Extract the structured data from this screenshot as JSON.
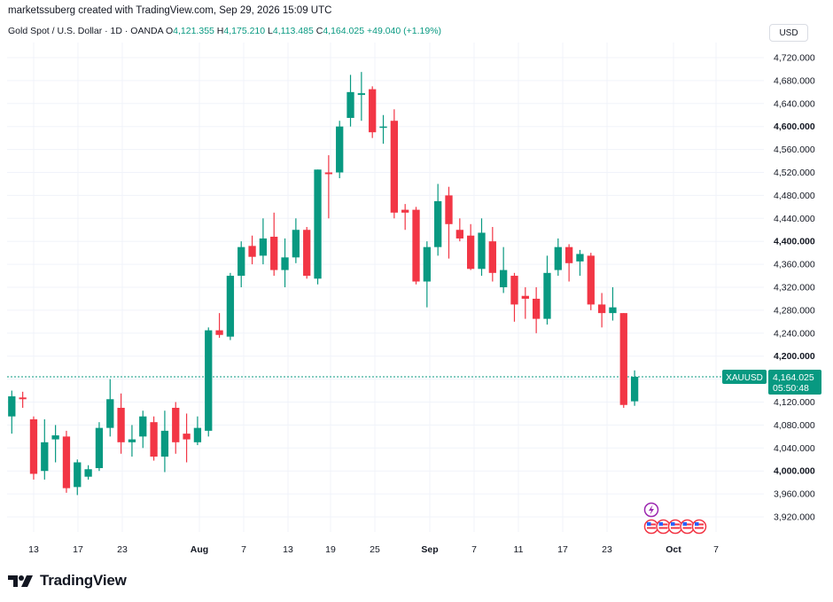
{
  "header": {
    "credit": "marketssuberg created with TradingView.com, Sep 29, 2026 15:09 UTC"
  },
  "legend": {
    "instrument": "Gold Spot / U.S. Dollar · 1D · OANDA",
    "open_label": "O",
    "open_value": "4,121.355",
    "high_label": "H",
    "high_value": "4,175.210",
    "low_label": "L",
    "low_value": "4,113.485",
    "close_label": "C",
    "close_value": "4,164.025",
    "change": "+49.040 (+1.19%)"
  },
  "currency_button": "USD",
  "price_tag": {
    "symbol": "XAUUSD",
    "price": "4,164.025",
    "countdown": "05:50:48"
  },
  "brand": {
    "name": "TradingView"
  },
  "colors": {
    "up": "#089981",
    "down": "#f23645",
    "grid": "#f0f3fa",
    "axis_text": "#131722"
  },
  "chart_data": {
    "type": "candlestick",
    "ylim": [
      3890,
      4760
    ],
    "y_ticks": [
      3920,
      3960,
      4000,
      4040,
      4080,
      4120,
      4160,
      4200,
      4240,
      4280,
      4320,
      4360,
      4400,
      4440,
      4480,
      4520,
      4560,
      4600,
      4640,
      4680,
      4720
    ],
    "bold_ticks": [
      4000,
      4200,
      4400,
      4600
    ],
    "x_ticks": [
      "13",
      "17",
      "23",
      "Aug",
      "7",
      "13",
      "19",
      "25",
      "Sep",
      "7",
      "11",
      "17",
      "23",
      "Oct",
      "7"
    ],
    "last_price": 4164.025,
    "candles": [
      {
        "o": 4095,
        "h": 4140,
        "l": 4065,
        "c": 4130
      },
      {
        "o": 4128,
        "h": 4138,
        "l": 4110,
        "c": 4125
      },
      {
        "o": 4090,
        "h": 4095,
        "l": 3985,
        "c": 3995
      },
      {
        "o": 4000,
        "h": 4090,
        "l": 3985,
        "c": 4050
      },
      {
        "o": 4055,
        "h": 4080,
        "l": 4015,
        "c": 4062
      },
      {
        "o": 4060,
        "h": 4070,
        "l": 3962,
        "c": 3970
      },
      {
        "o": 3972,
        "h": 4020,
        "l": 3958,
        "c": 4015
      },
      {
        "o": 3990,
        "h": 4010,
        "l": 3985,
        "c": 4003
      },
      {
        "o": 4005,
        "h": 4085,
        "l": 4000,
        "c": 4075
      },
      {
        "o": 4075,
        "h": 4160,
        "l": 4060,
        "c": 4125
      },
      {
        "o": 4110,
        "h": 4135,
        "l": 4030,
        "c": 4050
      },
      {
        "o": 4050,
        "h": 4080,
        "l": 4025,
        "c": 4055
      },
      {
        "o": 4060,
        "h": 4105,
        "l": 4040,
        "c": 4095
      },
      {
        "o": 4085,
        "h": 4095,
        "l": 4018,
        "c": 4025
      },
      {
        "o": 4025,
        "h": 4105,
        "l": 3998,
        "c": 4070
      },
      {
        "o": 4110,
        "h": 4120,
        "l": 4030,
        "c": 4050
      },
      {
        "o": 4065,
        "h": 4100,
        "l": 4015,
        "c": 4055
      },
      {
        "o": 4050,
        "h": 4095,
        "l": 4045,
        "c": 4075
      },
      {
        "o": 4070,
        "h": 4250,
        "l": 4060,
        "c": 4245
      },
      {
        "o": 4245,
        "h": 4275,
        "l": 4232,
        "c": 4237
      },
      {
        "o": 4234,
        "h": 4345,
        "l": 4228,
        "c": 4340
      },
      {
        "o": 4340,
        "h": 4400,
        "l": 4320,
        "c": 4390
      },
      {
        "o": 4392,
        "h": 4410,
        "l": 4360,
        "c": 4373
      },
      {
        "o": 4375,
        "h": 4440,
        "l": 4360,
        "c": 4405
      },
      {
        "o": 4408,
        "h": 4450,
        "l": 4340,
        "c": 4350
      },
      {
        "o": 4350,
        "h": 4405,
        "l": 4320,
        "c": 4372
      },
      {
        "o": 4372,
        "h": 4440,
        "l": 4362,
        "c": 4420
      },
      {
        "o": 4420,
        "h": 4425,
        "l": 4335,
        "c": 4340
      },
      {
        "o": 4335,
        "h": 4525,
        "l": 4325,
        "c": 4525
      },
      {
        "o": 4520,
        "h": 4550,
        "l": 4440,
        "c": 4517
      },
      {
        "o": 4520,
        "h": 4610,
        "l": 4510,
        "c": 4600
      },
      {
        "o": 4615,
        "h": 4690,
        "l": 4600,
        "c": 4660
      },
      {
        "o": 4655,
        "h": 4695,
        "l": 4610,
        "c": 4658
      },
      {
        "o": 4665,
        "h": 4670,
        "l": 4580,
        "c": 4590
      },
      {
        "o": 4600,
        "h": 4620,
        "l": 4570,
        "c": 4600
      },
      {
        "o": 4610,
        "h": 4630,
        "l": 4440,
        "c": 4450
      },
      {
        "o": 4455,
        "h": 4465,
        "l": 4420,
        "c": 4450
      },
      {
        "o": 4455,
        "h": 4460,
        "l": 4325,
        "c": 4330
      },
      {
        "o": 4330,
        "h": 4400,
        "l": 4285,
        "c": 4390
      },
      {
        "o": 4390,
        "h": 4500,
        "l": 4375,
        "c": 4470
      },
      {
        "o": 4480,
        "h": 4495,
        "l": 4370,
        "c": 4430
      },
      {
        "o": 4420,
        "h": 4440,
        "l": 4400,
        "c": 4405
      },
      {
        "o": 4410,
        "h": 4430,
        "l": 4350,
        "c": 4352
      },
      {
        "o": 4352,
        "h": 4440,
        "l": 4340,
        "c": 4415
      },
      {
        "o": 4400,
        "h": 4425,
        "l": 4330,
        "c": 4345
      },
      {
        "o": 4320,
        "h": 4390,
        "l": 4310,
        "c": 4350
      },
      {
        "o": 4340,
        "h": 4345,
        "l": 4260,
        "c": 4290
      },
      {
        "o": 4305,
        "h": 4320,
        "l": 4265,
        "c": 4300
      },
      {
        "o": 4300,
        "h": 4320,
        "l": 4240,
        "c": 4265
      },
      {
        "o": 4265,
        "h": 4375,
        "l": 4255,
        "c": 4345
      },
      {
        "o": 4350,
        "h": 4405,
        "l": 4340,
        "c": 4390
      },
      {
        "o": 4390,
        "h": 4395,
        "l": 4330,
        "c": 4362
      },
      {
        "o": 4365,
        "h": 4385,
        "l": 4340,
        "c": 4378
      },
      {
        "o": 4375,
        "h": 4380,
        "l": 4280,
        "c": 4290
      },
      {
        "o": 4290,
        "h": 4310,
        "l": 4250,
        "c": 4275
      },
      {
        "o": 4275,
        "h": 4320,
        "l": 4262,
        "c": 4285
      },
      {
        "o": 4275,
        "h": 4275,
        "l": 4110,
        "c": 4115
      },
      {
        "o": 4121.355,
        "h": 4175.21,
        "l": 4113.485,
        "c": 4164.025
      }
    ]
  }
}
